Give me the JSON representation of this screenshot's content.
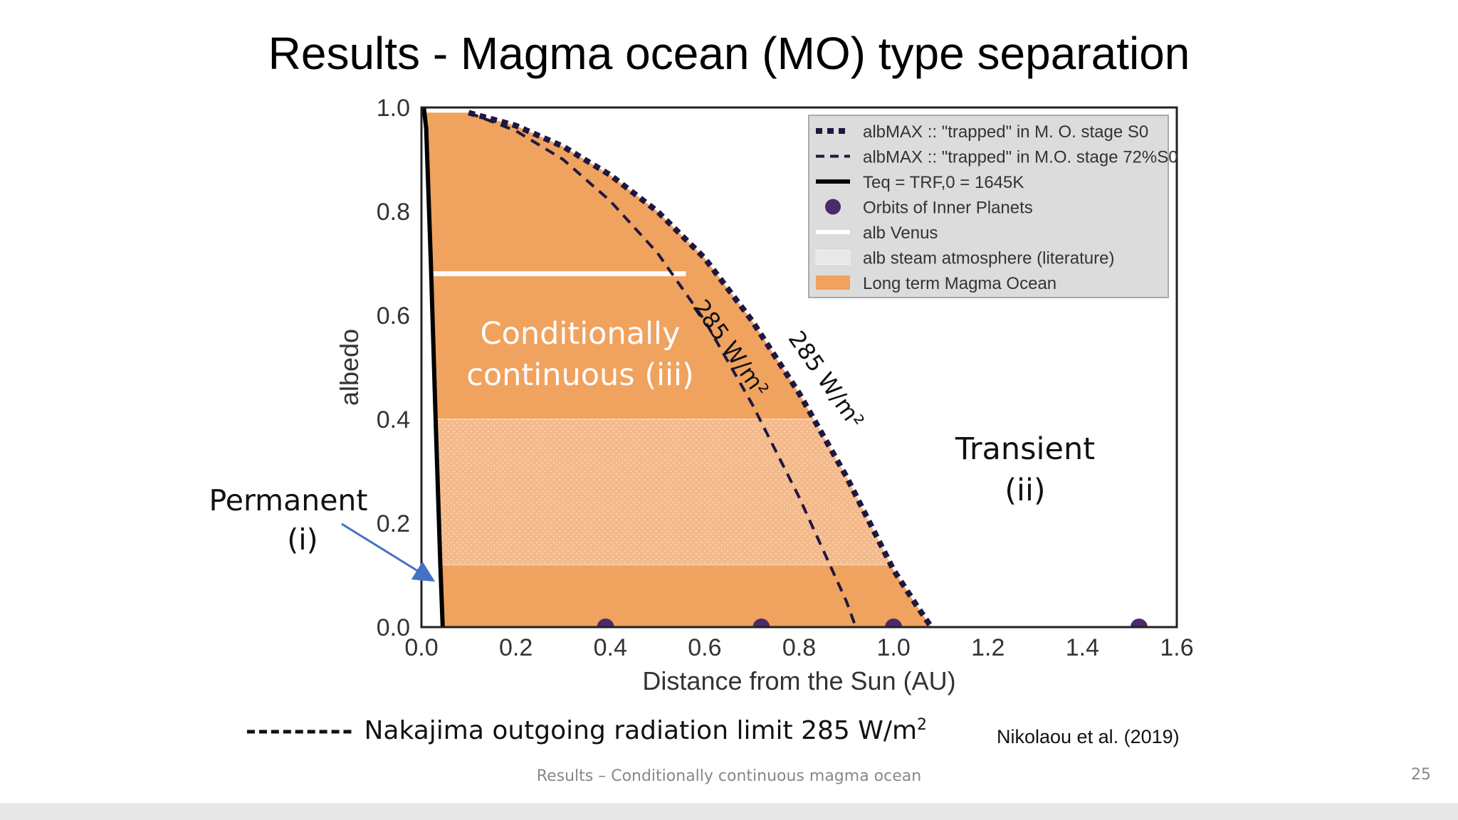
{
  "slide": {
    "title": "Results - Magma ocean (MO) type separation",
    "footer": "Results – Conditionally continuous magma ocean",
    "page_number": "25",
    "citation": "Nikolaou et al.  (2019)",
    "dash_legend": {
      "dashes": "---------",
      "text": "Nakajima outgoing radiation limit 285 W/m",
      "superscript": "2"
    }
  },
  "annotations": {
    "permanent": "Permanent",
    "permanent_sub": "(i)",
    "conditionally_1": "Conditionally",
    "conditionally_2": "continuous (iii)",
    "transient": "Transient",
    "transient_sub": "(ii)",
    "curve_label_1": "285 W/m²",
    "curve_label_2": "285 W/m²"
  },
  "colors": {
    "magma_fill": "#f0a25f",
    "steam_band": "#f4b98a",
    "curve_dark": "#1e1740",
    "planet": "#4a2a6b",
    "legend_bg": "#dcdcdc",
    "arrow": "#4472c4"
  },
  "chart_data": {
    "type": "area",
    "xlabel": "Distance from the Sun (AU)",
    "ylabel": "albedo",
    "xlim": [
      0.0,
      1.6
    ],
    "ylim": [
      0.0,
      1.0
    ],
    "x_ticks": [
      "0.0",
      "0.2",
      "0.4",
      "0.6",
      "0.8",
      "1.0",
      "1.2",
      "1.4",
      "1.6"
    ],
    "y_ticks": [
      "0.0",
      "0.2",
      "0.4",
      "0.6",
      "0.8",
      "1.0"
    ],
    "grid": false,
    "legend_position": "top-right",
    "series": [
      {
        "name": "alb_MAX :: \"trapped\" in M. O. stage S_0",
        "legend_text": "albMAX :: \"trapped\" in M. O. stage S0",
        "style": "thick-dotted",
        "x": [
          0.1,
          0.2,
          0.3,
          0.4,
          0.5,
          0.6,
          0.7,
          0.8,
          0.9,
          1.0,
          1.05,
          1.08
        ],
        "y": [
          0.99,
          0.965,
          0.925,
          0.87,
          0.8,
          0.71,
          0.59,
          0.45,
          0.29,
          0.11,
          0.04,
          0.0
        ]
      },
      {
        "name": "alb_MAX :: \"trapped\" in M.O. stage 72%S_0",
        "legend_text": "albMAX :: \"trapped\" in M.O. stage 72%S0",
        "style": "dashed",
        "x": [
          0.1,
          0.2,
          0.3,
          0.4,
          0.5,
          0.6,
          0.7,
          0.8,
          0.9,
          0.92
        ],
        "y": [
          0.99,
          0.955,
          0.9,
          0.82,
          0.72,
          0.59,
          0.43,
          0.25,
          0.05,
          0.0
        ]
      },
      {
        "name": "T_eq = T_RF,0 = 1645K",
        "legend_text": "Teq = TRF,0 = 1645K",
        "style": "solid",
        "x": [
          0.005,
          0.01,
          0.02,
          0.03,
          0.04,
          0.045
        ],
        "y": [
          1.0,
          0.96,
          0.7,
          0.4,
          0.12,
          0.0
        ]
      },
      {
        "name": "Orbits of Inner Planets",
        "legend_text": "Orbits of Inner Planets",
        "style": "points",
        "x": [
          0.39,
          0.72,
          1.0,
          1.52
        ],
        "y": [
          0.0,
          0.0,
          0.0,
          0.0
        ]
      },
      {
        "name": "alb Venus",
        "legend_text": "alb Venus",
        "style": "hline",
        "y": 0.68,
        "x_range": [
          0.02,
          0.56
        ]
      },
      {
        "name": "alb steam atmosphere (literature)",
        "legend_text": "alb steam atmosphere (literature)",
        "style": "band",
        "y_range": [
          0.12,
          0.4
        ]
      },
      {
        "name": "Long term Magma Ocean",
        "legend_text": "Long term Magma Ocean",
        "style": "fill"
      }
    ]
  }
}
